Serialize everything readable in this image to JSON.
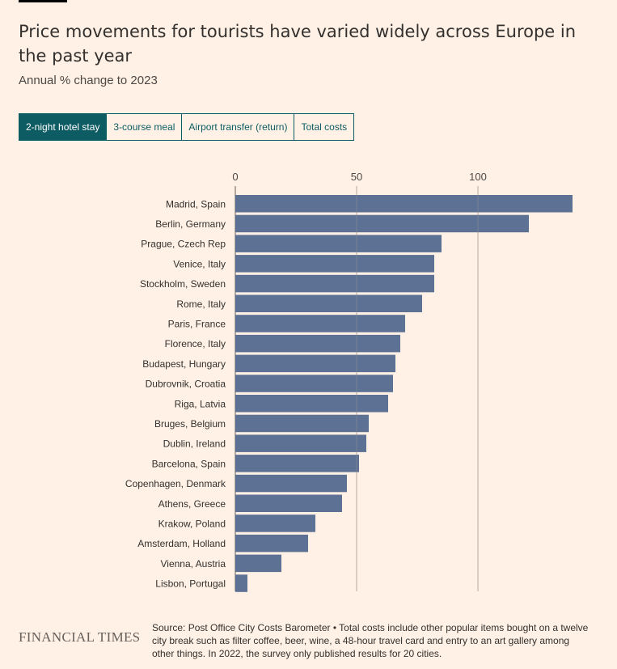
{
  "title": "Price movements for tourists have varied widely across Europe in the past year",
  "subtitle": "Annual % change to 2023",
  "tabs": [
    {
      "label": "2-night hotel stay",
      "active": true
    },
    {
      "label": "3-course meal",
      "active": false
    },
    {
      "label": "Airport transfer (return)",
      "active": false
    },
    {
      "label": "Total costs",
      "active": false
    }
  ],
  "colors": {
    "background": "#fff1e5",
    "bar": "#53698e",
    "tab_active": "#0d5c63",
    "grid": "#b5aca4"
  },
  "chart_data": {
    "type": "bar",
    "orientation": "horizontal",
    "title": "",
    "xlabel": "",
    "ylabel": "",
    "xlim": [
      0,
      140
    ],
    "xticks": [
      0,
      50,
      100
    ],
    "xaxis_position": "top",
    "grid": true,
    "categories": [
      "Madrid, Spain",
      "Berlin, Germany",
      "Prague, Czech Rep",
      "Venice, Italy",
      "Stockholm, Sweden",
      "Rome, Italy",
      "Paris, France",
      "Florence, Italy",
      "Budapest, Hungary",
      "Dubrovnik, Croatia",
      "Riga, Latvia",
      "Bruges, Belgium",
      "Dublin, Ireland",
      "Barcelona, Spain",
      "Copenhagen, Denmark",
      "Athens, Greece",
      "Krakow, Poland",
      "Amsterdam, Holland",
      "Vienna, Austria",
      "Lisbon, Portugal"
    ],
    "values": [
      139,
      121,
      85,
      82,
      82,
      77,
      70,
      68,
      66,
      65,
      63,
      55,
      54,
      51,
      46,
      44,
      33,
      30,
      19,
      5
    ]
  },
  "footer": {
    "logo": "FINANCIAL TIMES",
    "source": "Source: Post Office City Costs Barometer • Total costs include other popular items bought on a twelve city break such as filter coffee, beer, wine, a 48-hour travel card and entry to an art gallery among other things. In 2022, the survey only published results for 20 cities."
  }
}
